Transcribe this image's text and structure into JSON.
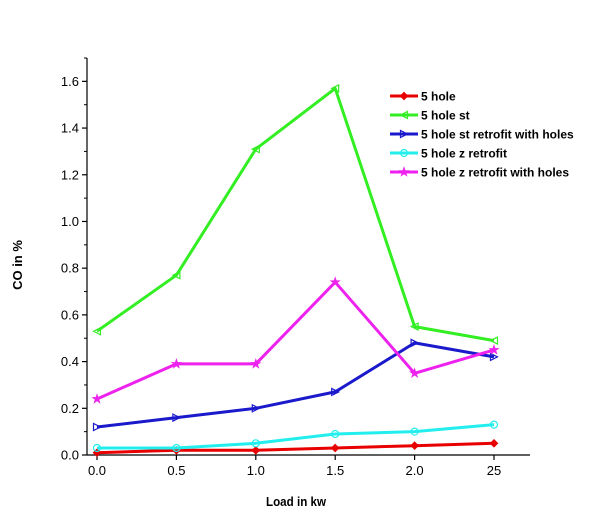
{
  "chart_data": {
    "type": "line",
    "title": "",
    "xlabel": "Load in kw",
    "ylabel": "CO in %",
    "x_tick_labels": [
      "0.0",
      "0.5",
      "1.0",
      "1.5",
      "2.0",
      "25"
    ],
    "y_ticks": [
      "0.0",
      "0.2",
      "0.4",
      "0.6",
      "0.8",
      "1.0",
      "1.2",
      "1.4",
      "1.6"
    ],
    "ylim": [
      0,
      1.7
    ],
    "grid": false,
    "legend_position": "top-right",
    "series": [
      {
        "name": "5 hole",
        "color": "#e80000",
        "marker": "diamond",
        "values": [
          0.01,
          0.02,
          0.02,
          0.03,
          0.04,
          0.05
        ]
      },
      {
        "name": "5 hole st",
        "color": "#33ee22",
        "marker": "triangle-left",
        "values": [
          0.53,
          0.77,
          1.31,
          1.57,
          0.55,
          0.49
        ]
      },
      {
        "name": "5 hole st retrofit  with holes",
        "color": "#1a1acc",
        "marker": "triangle-right",
        "values": [
          0.12,
          0.16,
          0.2,
          0.27,
          0.48,
          0.42
        ]
      },
      {
        "name": "5 hole z retrofit",
        "color": "#22eeee",
        "marker": "circle",
        "values": [
          0.03,
          0.03,
          0.05,
          0.09,
          0.1,
          0.13
        ]
      },
      {
        "name": "5 hole z retrofit with holes",
        "color": "#ee22ee",
        "marker": "star",
        "values": [
          0.24,
          0.39,
          0.39,
          0.74,
          0.35,
          0.45
        ]
      }
    ]
  }
}
